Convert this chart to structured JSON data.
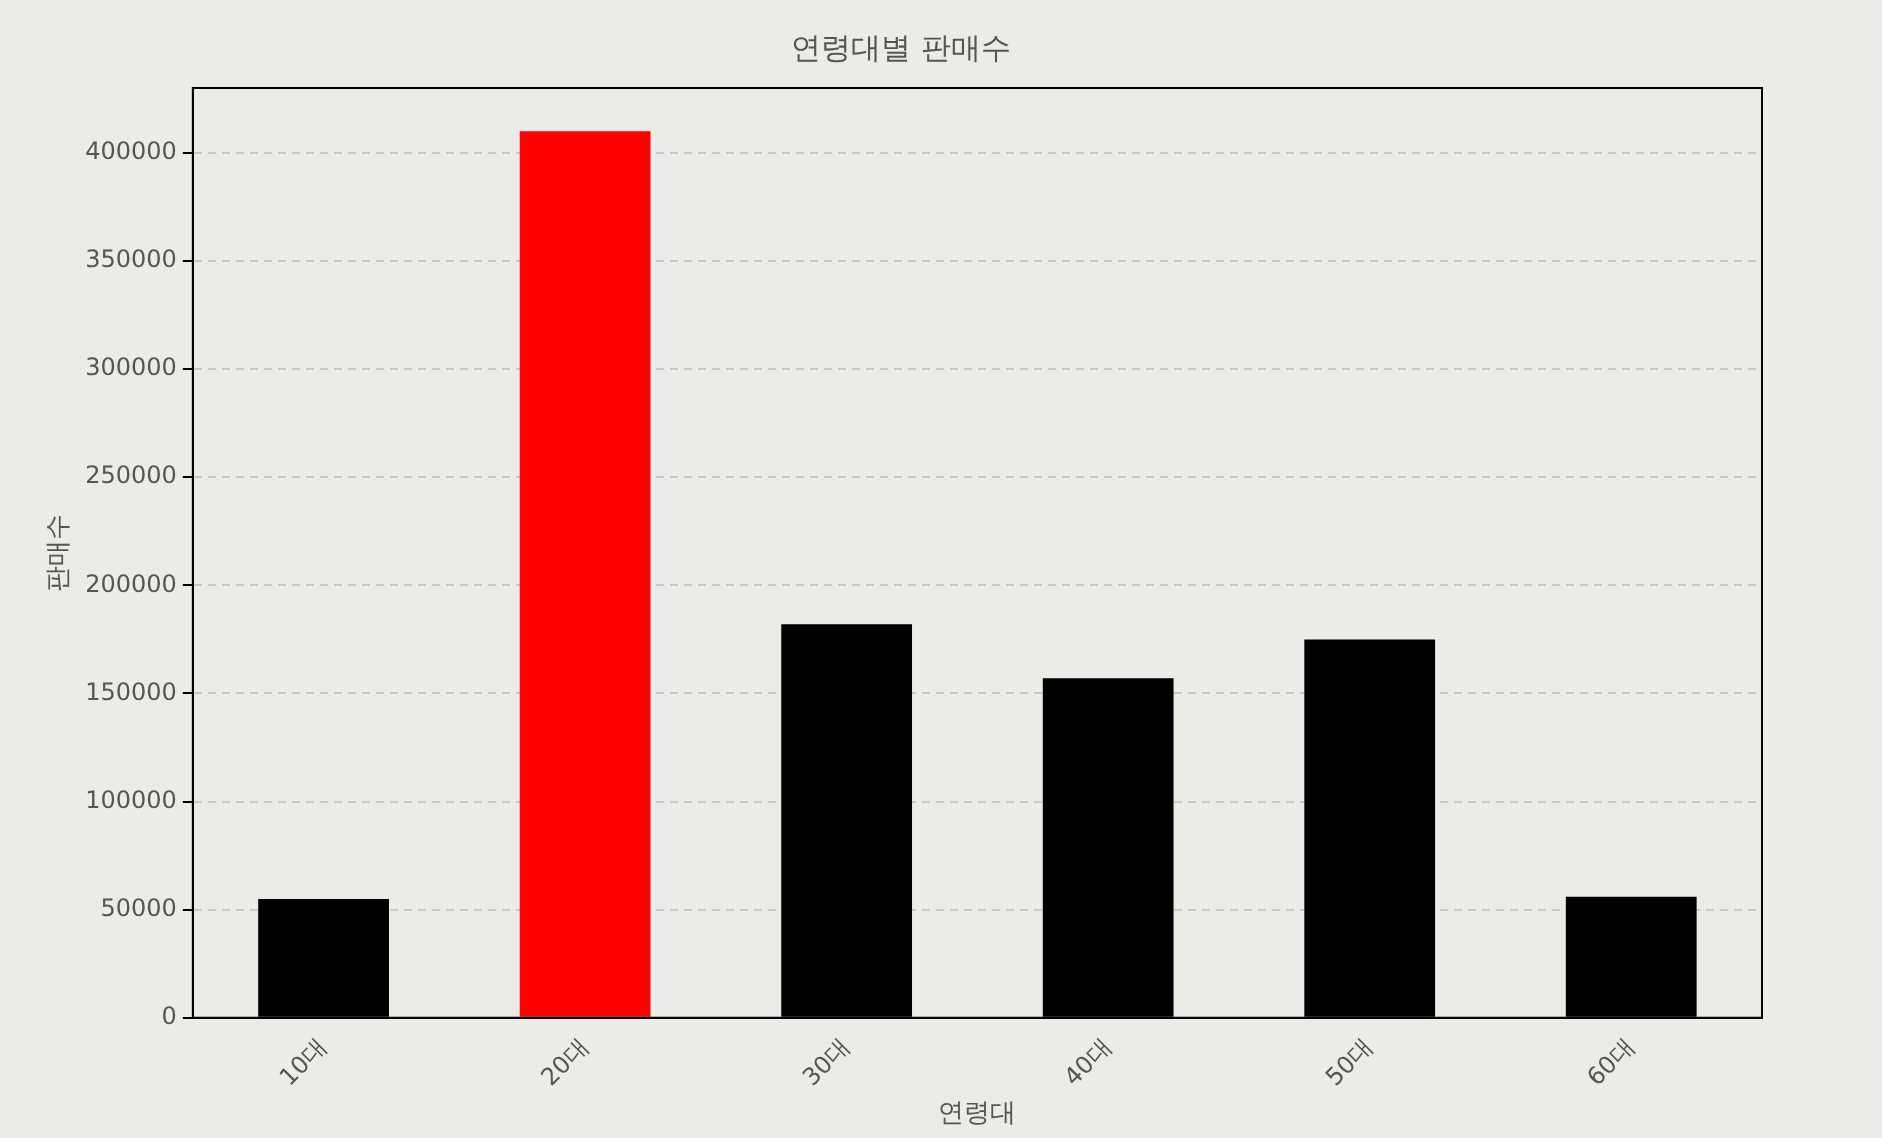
{
  "chart_data": {
    "type": "bar",
    "title": "연령대별 판매수",
    "xlabel": "연령대",
    "ylabel": "판매수",
    "categories": [
      "10대",
      "20대",
      "30대",
      "40대",
      "50대",
      "60대"
    ],
    "values": [
      55000,
      410000,
      182000,
      157000,
      175000,
      56000
    ],
    "colors": [
      "#000000",
      "#ff0000",
      "#000000",
      "#000000",
      "#000000",
      "#000000"
    ],
    "ylim": [
      0,
      430000
    ],
    "yticks": [
      0,
      50000,
      100000,
      150000,
      200000,
      250000,
      300000,
      350000,
      400000
    ],
    "grid": "y",
    "line_style": "dashed",
    "legend": false
  }
}
